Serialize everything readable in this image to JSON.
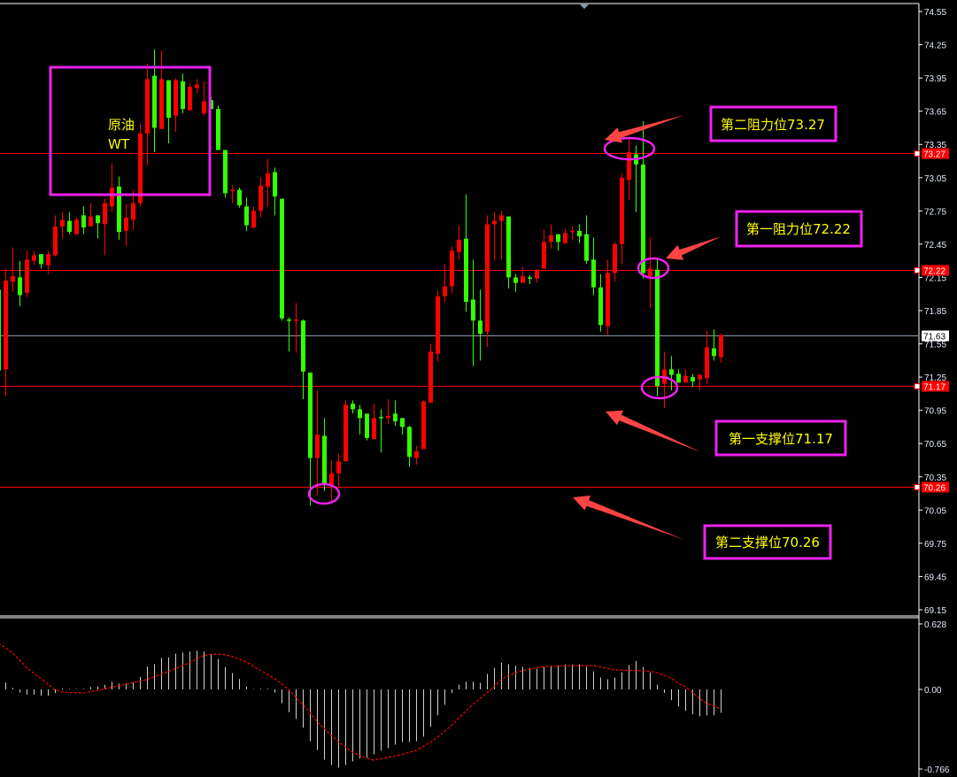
{
  "chart_data": {
    "type": "candlestick",
    "up_color": "#ff0000",
    "down_color": "#33ff00",
    "ylim": [
      69.15,
      74.55
    ],
    "y_ticks": [
      "74.55",
      "74.25",
      "73.95",
      "73.65",
      "73.35",
      "73.05",
      "72.75",
      "72.45",
      "72.15",
      "71.85",
      "71.55",
      "71.25",
      "70.95",
      "70.65",
      "70.35",
      "70.05",
      "69.75",
      "69.45",
      "69.15"
    ],
    "candles_ohlc": [
      [
        72.04,
        72.04,
        71.3,
        71.31
      ],
      [
        71.32,
        72.23,
        71.08,
        72.12
      ],
      [
        72.11,
        72.42,
        72.02,
        72.16
      ],
      [
        72.15,
        72.3,
        71.89,
        71.99
      ],
      [
        72.01,
        72.39,
        71.97,
        72.31
      ],
      [
        72.3,
        72.39,
        72.26,
        72.35
      ],
      [
        72.36,
        72.36,
        72.23,
        72.27
      ],
      [
        72.26,
        72.39,
        72.18,
        72.36
      ],
      [
        72.35,
        72.71,
        72.34,
        72.61
      ],
      [
        72.61,
        72.74,
        72.5,
        72.67
      ],
      [
        72.66,
        72.74,
        72.54,
        72.56
      ],
      [
        72.54,
        72.69,
        72.54,
        72.67
      ],
      [
        72.71,
        72.79,
        72.54,
        72.6
      ],
      [
        72.61,
        72.82,
        72.61,
        72.7
      ],
      [
        72.71,
        72.71,
        72.5,
        72.64
      ],
      [
        72.63,
        72.86,
        72.35,
        72.82
      ],
      [
        72.79,
        73.18,
        72.74,
        72.96
      ],
      [
        72.97,
        73.06,
        72.49,
        72.56
      ],
      [
        72.57,
        72.81,
        72.43,
        72.69
      ],
      [
        72.67,
        72.94,
        72.58,
        72.82
      ],
      [
        72.82,
        73.54,
        72.79,
        73.45
      ],
      [
        73.45,
        74.08,
        73.16,
        73.94
      ],
      [
        73.97,
        74.21,
        73.28,
        73.5
      ],
      [
        73.49,
        74.2,
        73.49,
        73.94
      ],
      [
        73.93,
        73.93,
        73.36,
        73.59
      ],
      [
        73.61,
        73.95,
        73.46,
        73.93
      ],
      [
        73.92,
        73.99,
        73.63,
        73.67
      ],
      [
        73.66,
        73.9,
        73.65,
        73.87
      ],
      [
        73.86,
        73.94,
        73.81,
        73.89
      ],
      [
        73.63,
        73.92,
        73.61,
        73.74
      ],
      [
        73.75,
        73.78,
        73.67,
        73.67
      ],
      [
        73.67,
        73.7,
        73.3,
        73.3
      ],
      [
        73.3,
        73.3,
        72.87,
        72.91
      ],
      [
        72.93,
        72.98,
        72.82,
        72.94
      ],
      [
        72.94,
        72.96,
        72.78,
        72.8
      ],
      [
        72.79,
        72.87,
        72.57,
        72.62
      ],
      [
        72.6,
        72.79,
        72.59,
        72.75
      ],
      [
        72.75,
        73.05,
        72.69,
        72.98
      ],
      [
        72.97,
        73.22,
        72.79,
        73.09
      ],
      [
        73.1,
        73.14,
        72.71,
        72.88
      ],
      [
        72.86,
        72.86,
        71.76,
        71.78
      ],
      [
        71.77,
        71.79,
        71.48,
        71.76
      ],
      [
        71.76,
        71.92,
        71.47,
        71.77
      ],
      [
        71.76,
        71.77,
        71.05,
        71.3
      ],
      [
        71.29,
        71.29,
        70.09,
        70.52
      ],
      [
        70.52,
        71.13,
        70.18,
        70.73
      ],
      [
        70.72,
        70.88,
        70.22,
        70.29
      ],
      [
        70.28,
        70.5,
        70.13,
        70.38
      ],
      [
        70.38,
        70.56,
        70.26,
        70.49
      ],
      [
        70.49,
        71.04,
        70.49,
        71.0
      ],
      [
        71.01,
        71.04,
        70.92,
        70.96
      ],
      [
        70.96,
        71.0,
        70.73,
        70.88
      ],
      [
        70.92,
        70.92,
        70.68,
        70.7
      ],
      [
        70.69,
        71.01,
        70.69,
        70.88
      ],
      [
        70.89,
        70.96,
        70.57,
        70.88
      ],
      [
        70.88,
        71.05,
        70.83,
        70.9
      ],
      [
        70.92,
        71.04,
        70.81,
        70.85
      ],
      [
        70.88,
        70.88,
        70.73,
        70.8
      ],
      [
        70.8,
        70.81,
        70.44,
        70.53
      ],
      [
        70.52,
        70.63,
        70.46,
        70.58
      ],
      [
        70.6,
        71.04,
        70.6,
        71.03
      ],
      [
        71.02,
        71.55,
        71.02,
        71.48
      ],
      [
        71.46,
        72.03,
        71.39,
        71.98
      ],
      [
        71.98,
        72.27,
        71.93,
        72.07
      ],
      [
        72.07,
        72.43,
        72.01,
        72.39
      ],
      [
        72.38,
        72.62,
        72.31,
        72.49
      ],
      [
        72.5,
        72.9,
        71.84,
        71.93
      ],
      [
        71.95,
        72.31,
        71.35,
        71.76
      ],
      [
        71.76,
        72.04,
        71.4,
        71.64
      ],
      [
        71.66,
        72.71,
        71.52,
        72.63
      ],
      [
        72.63,
        72.74,
        72.3,
        72.66
      ],
      [
        72.66,
        72.75,
        72.31,
        72.71
      ],
      [
        72.7,
        72.7,
        72.05,
        72.15
      ],
      [
        72.15,
        72.18,
        72.02,
        72.1
      ],
      [
        72.1,
        72.24,
        72.1,
        72.16
      ],
      [
        72.15,
        72.17,
        72.09,
        72.14
      ],
      [
        72.14,
        72.22,
        72.1,
        72.22
      ],
      [
        72.23,
        72.58,
        72.23,
        72.47
      ],
      [
        72.47,
        72.63,
        72.41,
        72.53
      ],
      [
        72.54,
        72.54,
        72.39,
        72.47
      ],
      [
        72.46,
        72.59,
        72.45,
        72.55
      ],
      [
        72.57,
        72.61,
        72.49,
        72.57
      ],
      [
        72.57,
        72.63,
        72.46,
        72.52
      ],
      [
        72.54,
        72.71,
        72.27,
        72.3
      ],
      [
        72.31,
        72.51,
        71.99,
        72.06
      ],
      [
        72.06,
        72.18,
        71.66,
        71.72
      ],
      [
        71.71,
        72.31,
        71.63,
        72.19
      ],
      [
        72.19,
        72.47,
        72.11,
        72.45
      ],
      [
        72.45,
        73.09,
        72.27,
        73.05
      ],
      [
        73.03,
        73.42,
        72.85,
        73.28
      ],
      [
        73.26,
        73.34,
        72.74,
        73.17
      ],
      [
        73.17,
        73.56,
        72.14,
        72.19
      ],
      [
        72.16,
        72.51,
        71.87,
        72.23
      ],
      [
        72.22,
        72.31,
        71.08,
        71.17
      ],
      [
        71.19,
        71.48,
        70.97,
        71.32
      ],
      [
        71.32,
        71.44,
        71.13,
        71.27
      ],
      [
        71.28,
        71.32,
        71.2,
        71.2
      ],
      [
        71.2,
        71.32,
        71.2,
        71.26
      ],
      [
        71.25,
        71.28,
        71.16,
        71.21
      ],
      [
        71.23,
        71.28,
        71.13,
        71.27
      ],
      [
        71.24,
        71.67,
        71.19,
        71.52
      ],
      [
        71.51,
        71.68,
        71.4,
        71.44
      ],
      [
        71.43,
        71.64,
        71.38,
        71.63
      ]
    ],
    "horizontal_lines": [
      {
        "price": 73.27,
        "label": "73.27",
        "color": "#ff0000"
      },
      {
        "price": 72.22,
        "label": "72.22",
        "color": "#ff0000"
      },
      {
        "price": 71.17,
        "label": "71.17",
        "color": "#ff0000"
      },
      {
        "price": 70.26,
        "label": "70.26",
        "color": "#ff0000"
      }
    ],
    "current_price": {
      "price": 71.63,
      "label": "71.63",
      "color": "#8899aa"
    },
    "indicator": {
      "type": "macd",
      "ylim": [
        -0.766,
        0.628
      ],
      "y_ticks": [
        "0.628",
        "0.00",
        "-0.766"
      ],
      "histogram_color": "#d0d0d0",
      "signal_color": "#ff0000",
      "histogram": [
        null,
        0.066,
        0.014,
        -0.03,
        -0.05,
        -0.05,
        -0.06,
        -0.06,
        -0.035,
        0.01,
        0.005,
        0,
        0.005,
        0.023,
        0.03,
        0.045,
        0.074,
        0.057,
        0.057,
        0.066,
        0.12,
        0.22,
        0.245,
        0.305,
        0.31,
        0.345,
        0.356,
        0.365,
        0.373,
        0.365,
        0.336,
        0.293,
        0.217,
        0.157,
        0.1,
        0.028,
        0.003,
        0.006,
        0.006,
        -0.03,
        -0.134,
        -0.22,
        -0.285,
        -0.37,
        -0.5,
        -0.584,
        -0.68,
        -0.73,
        -0.755,
        -0.73,
        -0.695,
        -0.667,
        -0.66,
        -0.627,
        -0.593,
        -0.567,
        -0.533,
        -0.507,
        -0.507,
        -0.5,
        -0.456,
        -0.362,
        -0.25,
        -0.148,
        -0.034,
        0.045,
        0.074,
        0.074,
        0.063,
        0.15,
        0.208,
        0.26,
        0.242,
        0.228,
        0.217,
        0.208,
        0.2,
        0.217,
        0.228,
        0.228,
        0.242,
        0.242,
        0.242,
        0.217,
        0.174,
        0.114,
        0.097,
        0.114,
        0.165,
        0.234,
        0.276,
        0.217,
        0.165,
        0.045,
        -0.034,
        -0.105,
        -0.165,
        -0.208,
        -0.24,
        -0.26,
        -0.25,
        -0.25,
        -0.225
      ],
      "signal": [
        0.444,
        0.404,
        0.35,
        0.284,
        0.214,
        0.156,
        0.105,
        0.052,
        -0.004,
        -0.025,
        -0.03,
        -0.032,
        -0.034,
        -0.02,
        -0.011,
        0.005,
        0.02,
        0.034,
        0.049,
        0.065,
        0.08,
        0.096,
        0.122,
        0.146,
        0.171,
        0.2,
        0.228,
        0.259,
        0.293,
        0.328,
        0.339,
        0.34,
        0.337,
        0.318,
        0.294,
        0.265,
        0.225,
        0.185,
        0.145,
        0.105,
        0.057,
        -0.004,
        -0.072,
        -0.148,
        -0.219,
        -0.312,
        -0.376,
        -0.443,
        -0.503,
        -0.554,
        -0.605,
        -0.638,
        -0.664,
        -0.684,
        -0.669,
        -0.654,
        -0.644,
        -0.628,
        -0.609,
        -0.59,
        -0.55,
        -0.51,
        -0.462,
        -0.405,
        -0.348,
        -0.28,
        -0.211,
        -0.148,
        -0.091,
        -0.034,
        0.028,
        0.091,
        0.134,
        0.157,
        0.18,
        0.195,
        0.21,
        0.219,
        0.222,
        0.225,
        0.228,
        0.23,
        0.23,
        0.23,
        0.23,
        0.219,
        0.203,
        0.188,
        0.187,
        0.185,
        0.183,
        0.179,
        0.175,
        0.16,
        0.137,
        0.108,
        0.06,
        0.027,
        -0.027,
        -0.084,
        -0.134,
        -0.16,
        -0.19
      ]
    }
  },
  "annotations": {
    "title_line1": "原油",
    "title_line2": "WT",
    "resistance_2": "第二阻力位73.27",
    "resistance_1": "第一阻力位72.22",
    "support_1": "第一支撑位71.17",
    "support_2": "第二支撑位70.26",
    "box_color": "#ee22ee",
    "text_color": "#ffff00",
    "arrow_color": "#ff4444"
  }
}
